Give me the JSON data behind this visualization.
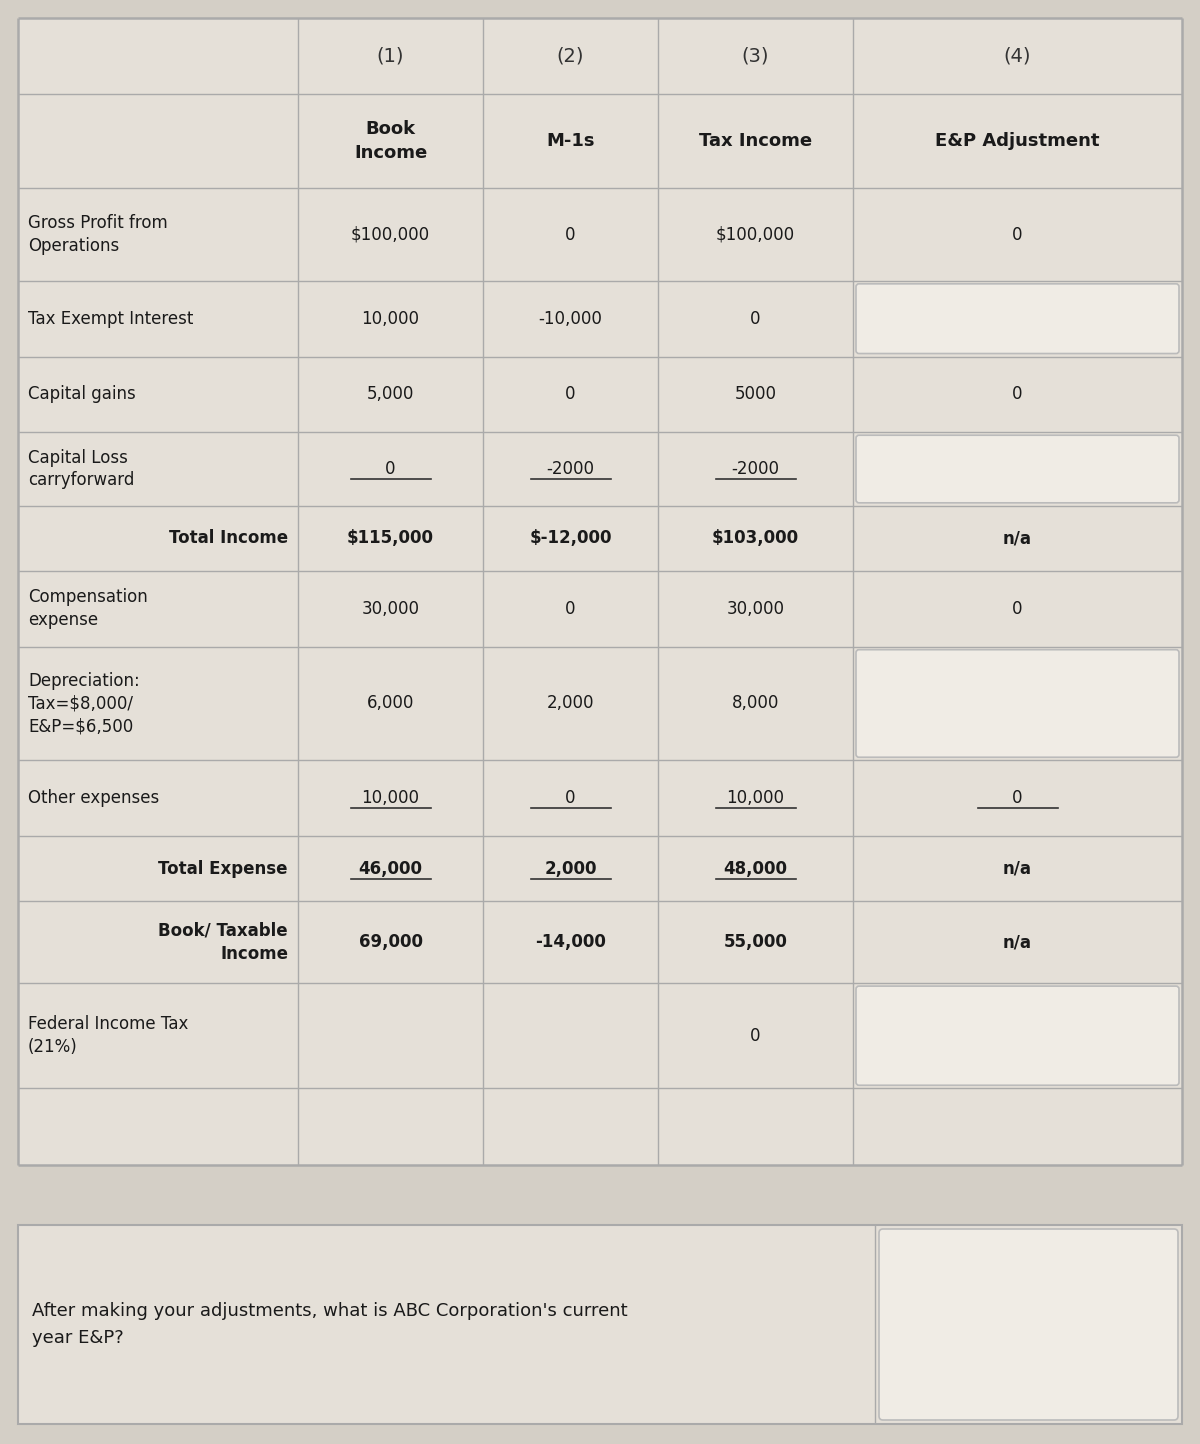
{
  "bg_color": "#d4cfc6",
  "table_bg": "#e5e0d8",
  "answer_box_color": "#eae6e0",
  "border_color": "#aaaaaa",
  "text_color": "#1a1a1a",
  "col_headers": [
    "(1)",
    "(2)",
    "(3)",
    "(4)"
  ],
  "col_subheaders": [
    "Book\nIncome",
    "M-1s",
    "Tax Income",
    "E&P Adjustment"
  ],
  "rows": [
    {
      "label": "Gross Profit from\nOperations",
      "col1": "$100,000",
      "col2": "0",
      "col3": "$100,000",
      "col4": "0",
      "col4_box": false,
      "label_indent": false,
      "is_total": false,
      "underline_col1": false,
      "underline_col2": false,
      "underline_col3": false,
      "underline_col4": false
    },
    {
      "label": "Tax Exempt Interest",
      "col1": "10,000",
      "col2": "-10,000",
      "col3": "0",
      "col4": "",
      "col4_box": true,
      "label_indent": false,
      "is_total": false,
      "underline_col1": false,
      "underline_col2": false,
      "underline_col3": false,
      "underline_col4": false
    },
    {
      "label": "Capital gains",
      "col1": "5,000",
      "col2": "0",
      "col3": "5000",
      "col4": "0",
      "col4_box": false,
      "label_indent": false,
      "is_total": false,
      "underline_col1": false,
      "underline_col2": false,
      "underline_col3": false,
      "underline_col4": false
    },
    {
      "label": "Capital Loss\ncarryforward",
      "col1": "0",
      "col2": "-2000",
      "col3": "-2000",
      "col4": "",
      "col4_box": true,
      "label_indent": false,
      "is_total": false,
      "underline_col1": true,
      "underline_col2": true,
      "underline_col3": true,
      "underline_col4": false
    },
    {
      "label": "Total Income",
      "col1": "$115,000",
      "col2": "$-12,000",
      "col3": "$103,000",
      "col4": "n/a",
      "col4_box": false,
      "label_indent": true,
      "is_total": true,
      "underline_col1": false,
      "underline_col2": false,
      "underline_col3": false,
      "underline_col4": false
    },
    {
      "label": "Compensation\nexpense",
      "col1": "30,000",
      "col2": "0",
      "col3": "30,000",
      "col4": "0",
      "col4_box": false,
      "label_indent": false,
      "is_total": false,
      "underline_col1": false,
      "underline_col2": false,
      "underline_col3": false,
      "underline_col4": false
    },
    {
      "label": "Depreciation:\nTax=$8,000/\nE&P=$6,500",
      "col1": "6,000",
      "col2": "2,000",
      "col3": "8,000",
      "col4": "",
      "col4_box": true,
      "label_indent": false,
      "is_total": false,
      "underline_col1": false,
      "underline_col2": false,
      "underline_col3": false,
      "underline_col4": false
    },
    {
      "label": "Other expenses",
      "col1": "10,000",
      "col2": "0",
      "col3": "10,000",
      "col4": "0",
      "col4_box": false,
      "label_indent": false,
      "is_total": false,
      "underline_col1": true,
      "underline_col2": true,
      "underline_col3": true,
      "underline_col4": true
    },
    {
      "label": "Total Expense",
      "col1": "46,000",
      "col2": "2,000",
      "col3": "48,000",
      "col4": "n/a",
      "col4_box": false,
      "label_indent": true,
      "is_total": true,
      "underline_col1": true,
      "underline_col2": true,
      "underline_col3": true,
      "underline_col4": false
    },
    {
      "label": "Book/ Taxable\nIncome",
      "col1": "69,000",
      "col2": "-14,000",
      "col3": "55,000",
      "col4": "n/a",
      "col4_box": false,
      "label_indent": true,
      "is_total": true,
      "underline_col1": false,
      "underline_col2": false,
      "underline_col3": false,
      "underline_col4": false
    },
    {
      "label": "Federal Income Tax\n(21%)",
      "col1": "",
      "col2": "",
      "col3": "0",
      "col4": "",
      "col4_box": true,
      "label_indent": false,
      "is_total": false,
      "underline_col1": false,
      "underline_col2": false,
      "underline_col3": false,
      "underline_col4": false
    },
    {
      "label": "",
      "col1": "",
      "col2": "",
      "col3": "",
      "col4": "",
      "col4_box": false,
      "label_indent": false,
      "is_total": false,
      "underline_col1": false,
      "underline_col2": false,
      "underline_col3": false,
      "underline_col4": false
    }
  ],
  "question_text": "After making your adjustments, what is ABC Corporation's current\nyear E&P?",
  "figsize": [
    12.0,
    14.44
  ],
  "dpi": 100
}
